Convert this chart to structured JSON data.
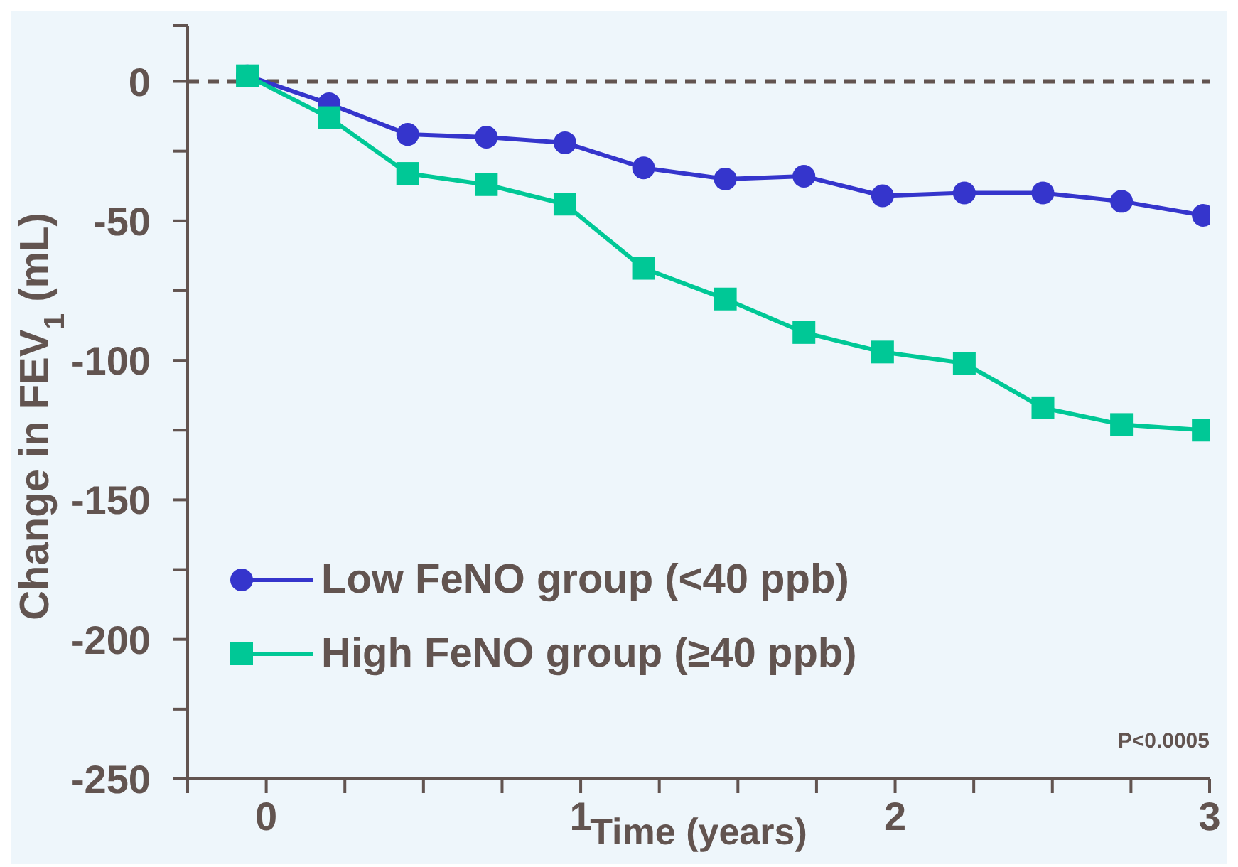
{
  "chart_data": {
    "type": "line",
    "xlabel": "Time (years)",
    "ylabel": "Change in FEV$_{1}$ (mL)",
    "xlim": [
      -0.25,
      3
    ],
    "xticks": [
      {
        "value": -0.25,
        "label": null
      },
      0,
      {
        "value": 0.25,
        "label": null
      },
      {
        "value": 0.5,
        "label": null
      },
      {
        "value": 0.75,
        "label": null
      },
      1,
      {
        "value": 1.25,
        "label": null
      },
      {
        "value": 1.5,
        "label": null
      },
      {
        "value": 1.75,
        "label": null
      },
      2,
      {
        "value": 2.25,
        "label": null
      },
      {
        "value": 2.5,
        "label": null
      },
      {
        "value": 2.75,
        "label": null
      },
      3
    ],
    "ylim": [
      -250,
      20
    ],
    "yticks": [
      -250,
      {
        "value": -225,
        "label": null
      },
      -200,
      {
        "value": -175,
        "label": null
      },
      -150,
      {
        "value": -125,
        "label": null
      },
      -100,
      {
        "value": -75,
        "label": null
      },
      -50,
      {
        "value": -25,
        "label": null
      },
      0,
      {
        "value": 20,
        "label": null
      }
    ],
    "x": [
      -0.06,
      0.2,
      0.45,
      0.7,
      0.95,
      1.2,
      1.46,
      1.71,
      1.96,
      2.22,
      2.47,
      2.72,
      2.98
    ],
    "series": [
      {
        "name": "Low FeNO group (<40 ppb)",
        "color": "#3535cc",
        "marker": "circle",
        "values": [
          2,
          -8,
          -19,
          -20,
          -22,
          -31,
          -35,
          -34,
          -41,
          -40,
          -40,
          -43,
          -48
        ]
      },
      {
        "name": "High FeNO group (≥40 ppb)",
        "color": "#00c896",
        "marker": "square",
        "values": [
          2,
          -13,
          -33,
          -37,
          -44,
          -67,
          -78,
          -90,
          -97,
          -101,
          -117,
          -123,
          -125
        ]
      }
    ],
    "ref_lines": [
      {
        "axis": "y",
        "value": 0,
        "color": "#625450",
        "line_style": "dashed"
      }
    ],
    "annotations": [
      "P<0.0005"
    ],
    "legend": "bottom left",
    "grid": false
  }
}
